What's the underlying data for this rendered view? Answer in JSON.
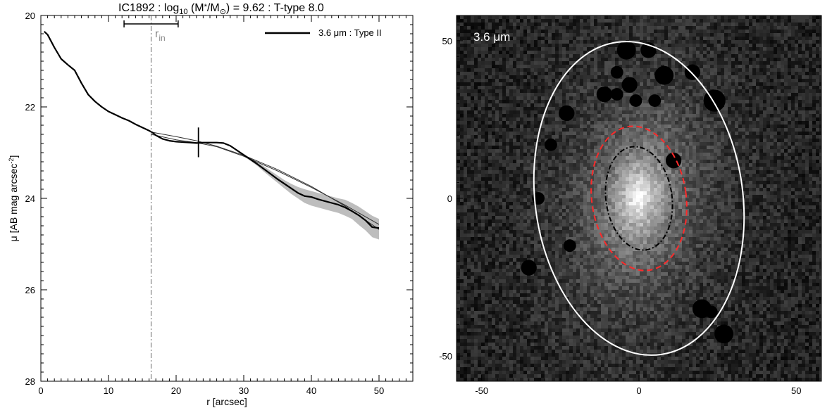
{
  "figure": {
    "title_main": "IC1892 : log",
    "title_sub10": "10",
    "title_mid": " (M",
    "title_star": "*",
    "title_slash": "/M",
    "title_sun": "⊙",
    "title_end": ") = 9.62 : T-type 8.0"
  },
  "chart_data": [
    {
      "type": "line",
      "xlabel": "r [arcsec]",
      "ylabel_prefix": "μ [AB mag arcsec",
      "ylabel_sup": "-2",
      "ylabel_suffix": "]",
      "xlim": [
        0,
        55
      ],
      "ylim": [
        28,
        20
      ],
      "y_inverted": true,
      "xticks": [
        0,
        10,
        20,
        30,
        40,
        50
      ],
      "yticks": [
        20,
        22,
        24,
        26,
        28
      ],
      "grid": false,
      "legend": {
        "entries": [
          {
            "label": "3.6 μm : Type II"
          }
        ],
        "placement": "top-right"
      },
      "annotations": {
        "r_in_label": "r",
        "r_in_sub": "in",
        "r_in_x": 16.3,
        "r_in_range": [
          12.3,
          20.3
        ],
        "break_x": 23.3,
        "break_range": [
          22.45,
          23.1
        ]
      },
      "series": [
        {
          "role": "profile",
          "x": [
            0.5,
            1,
            2,
            3,
            4,
            5,
            6,
            7,
            8,
            9,
            10,
            11,
            12,
            13,
            14,
            15,
            16,
            16.5,
            17,
            18,
            19,
            20,
            21,
            22,
            23,
            24,
            25,
            26,
            27,
            28,
            29,
            30,
            31,
            32,
            33,
            34,
            35,
            36,
            37,
            38,
            39,
            40,
            41,
            42,
            43,
            44,
            45,
            46,
            47,
            48,
            49,
            50
          ],
          "y": [
            20.35,
            20.42,
            20.7,
            20.95,
            21.08,
            21.2,
            21.48,
            21.73,
            21.88,
            22.0,
            22.1,
            22.17,
            22.24,
            22.3,
            22.38,
            22.45,
            22.52,
            22.56,
            22.62,
            22.7,
            22.74,
            22.76,
            22.77,
            22.78,
            22.79,
            22.78,
            22.78,
            22.78,
            22.79,
            22.85,
            22.95,
            23.05,
            23.15,
            23.25,
            23.36,
            23.47,
            23.58,
            23.68,
            23.78,
            23.88,
            23.95,
            23.97,
            24.02,
            24.06,
            24.1,
            24.14,
            24.2,
            24.28,
            24.37,
            24.48,
            24.63,
            24.65
          ],
          "err_upper": [
            20.35,
            20.42,
            20.7,
            20.95,
            21.08,
            21.2,
            21.48,
            21.73,
            21.88,
            22.0,
            22.1,
            22.17,
            22.24,
            22.3,
            22.38,
            22.45,
            22.52,
            22.56,
            22.62,
            22.7,
            22.74,
            22.76,
            22.77,
            22.78,
            22.79,
            22.78,
            22.78,
            22.78,
            22.79,
            22.84,
            22.93,
            23.03,
            23.12,
            23.21,
            23.3,
            23.4,
            23.5,
            23.6,
            23.68,
            23.75,
            23.8,
            23.84,
            23.88,
            23.92,
            23.96,
            24.0,
            24.03,
            24.1,
            24.18,
            24.28,
            24.38,
            24.45
          ],
          "err_lower": [
            20.35,
            20.42,
            20.7,
            20.95,
            21.08,
            21.2,
            21.48,
            21.73,
            21.88,
            22.0,
            22.1,
            22.17,
            22.24,
            22.3,
            22.38,
            22.45,
            22.52,
            22.56,
            22.62,
            22.7,
            22.74,
            22.76,
            22.77,
            22.78,
            22.79,
            22.78,
            22.78,
            22.78,
            22.79,
            22.86,
            22.97,
            23.08,
            23.18,
            23.29,
            23.42,
            23.54,
            23.66,
            23.78,
            23.9,
            24.0,
            24.1,
            24.16,
            24.2,
            24.24,
            24.28,
            24.32,
            24.38,
            24.45,
            24.58,
            24.7,
            24.85,
            24.9
          ]
        },
        {
          "role": "inner-disk-fit",
          "x": [
            16.3,
            20,
            23,
            26,
            30,
            35,
            40,
            45,
            50
          ],
          "y": [
            22.55,
            22.65,
            22.74,
            22.86,
            23.06,
            23.37,
            23.74,
            24.17,
            24.68
          ]
        },
        {
          "role": "outer-disk-fit",
          "x": [
            16.3,
            20,
            23,
            26,
            30,
            35,
            40,
            45,
            50
          ],
          "y": [
            22.6,
            22.72,
            22.78,
            22.87,
            23.08,
            23.4,
            23.76,
            24.15,
            24.57
          ]
        }
      ]
    },
    {
      "type": "image",
      "label": "3.6 μm",
      "xlim": [
        -58,
        58
      ],
      "ylim": [
        -58,
        58
      ],
      "xticks": [
        -50,
        0,
        50
      ],
      "yticks": [
        -50,
        0,
        50
      ],
      "ellipses": [
        {
          "name": "outer-isophote-ellipse",
          "cx": 0,
          "cy": 0,
          "rx": 33,
          "ry": 50,
          "rotation_deg": -8,
          "color": "#ffffff",
          "style": "solid"
        },
        {
          "name": "break-radius-ellipse",
          "cx": 0,
          "cy": 0,
          "rx": 15,
          "ry": 23,
          "rotation_deg": -8,
          "color": "#ff2a2a",
          "style": "dashed"
        },
        {
          "name": "inner-radius-ellipse",
          "cx": 0,
          "cy": 0,
          "rx": 10.5,
          "ry": 16.5,
          "rotation_deg": -8,
          "color": "#000000",
          "style": "dashdot"
        }
      ],
      "masks": [
        [
          -4,
          47,
          3
        ],
        [
          3,
          47,
          2.5
        ],
        [
          -7,
          40,
          2
        ],
        [
          8,
          39,
          3
        ],
        [
          17,
          40,
          2.5
        ],
        [
          -7,
          33,
          2
        ],
        [
          24,
          31,
          3.5
        ],
        [
          5,
          31,
          2
        ],
        [
          -23,
          27,
          2.5
        ],
        [
          -1,
          31,
          2
        ],
        [
          -3,
          36,
          2.5
        ],
        [
          11,
          12,
          2.5
        ],
        [
          -11,
          33,
          2.5
        ],
        [
          -28,
          17,
          2
        ],
        [
          -32,
          0,
          2
        ],
        [
          -22,
          -15,
          2
        ],
        [
          20,
          -35,
          3
        ],
        [
          23,
          -36,
          2
        ],
        [
          -35,
          -22,
          2.5
        ],
        [
          27,
          -43,
          3
        ]
      ],
      "noise_seed": 7
    }
  ]
}
